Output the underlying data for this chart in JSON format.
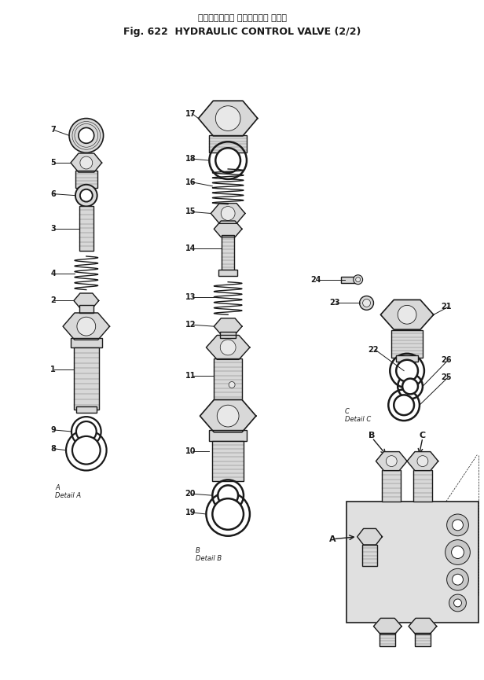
{
  "title_japanese": "ハイドロリック コントロール バルブ",
  "title_english": "Fig. 622  HYDRAULIC CONTROL VALVE (2/2)",
  "bg_color": "#ffffff",
  "lc": "#1a1a1a",
  "pc": "#d8d8d8",
  "pc2": "#e8e8e8",
  "detail_a_label": "A      Detail A",
  "detail_b_label": "B      Detail B",
  "detail_c_label": "C      Detail C",
  "fig_width": 6.16,
  "fig_height": 8.65,
  "dpi": 100
}
